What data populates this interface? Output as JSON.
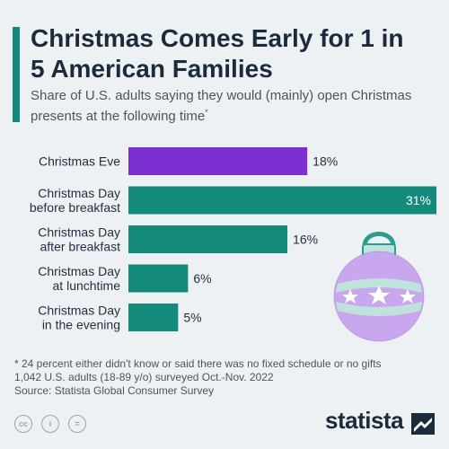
{
  "header": {
    "title": "Christmas Comes Early for 1 in 5 American Families",
    "subtitle": "Share of U.S. adults saying they would (mainly) open Christmas presents at the following time",
    "subtitle_marker": "*"
  },
  "chart_data": {
    "type": "bar",
    "orientation": "horizontal",
    "categories": [
      [
        "Christmas Eve"
      ],
      [
        "Christmas Day",
        "before breakfast"
      ],
      [
        "Christmas Day",
        "after breakfast"
      ],
      [
        "Christmas Day",
        "at lunchtime"
      ],
      [
        "Christmas Day",
        "in the evening"
      ]
    ],
    "values": [
      18,
      31,
      16,
      6,
      5
    ],
    "value_labels": [
      "18%",
      "31%",
      "16%",
      "6%",
      "5%"
    ],
    "colors": [
      "#7b2fd0",
      "#138a7a",
      "#138a7a",
      "#138a7a",
      "#138a7a"
    ],
    "unit": "%",
    "xlim": [
      0,
      31
    ],
    "grid": false,
    "legend": "none"
  },
  "footer": {
    "note_line1": "* 24 percent either didn't know or said there was no fixed schedule or no gifts",
    "note_line2": "1,042 U.S. adults (18-89 y/o) surveyed Oct.-Nov. 2022",
    "source": "Source: Statista Global Consumer Survey",
    "license_icons": [
      "cc",
      "i",
      "="
    ],
    "brand": "statista"
  }
}
